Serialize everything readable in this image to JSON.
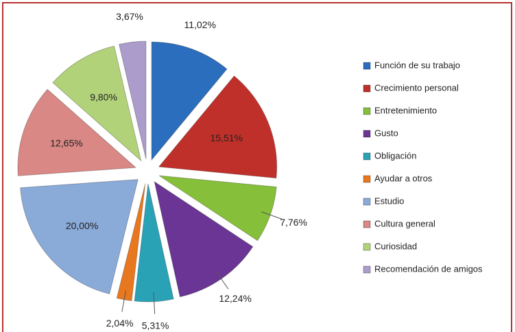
{
  "chart_data": {
    "type": "pie",
    "categories": [
      "Función de su trabajo",
      "Crecimiento personal",
      "Entretenimiento",
      "Gusto",
      "Obligación",
      "Ayudar a otros",
      "Estudio",
      "Cultura general",
      "Curiosidad",
      "Recomendación de amigos"
    ],
    "values": [
      11.02,
      15.51,
      7.76,
      12.24,
      5.31,
      2.04,
      20.0,
      12.65,
      9.8,
      3.67
    ],
    "value_labels": [
      "11,02%",
      "15,51%",
      "7,76%",
      "12,24%",
      "5,31%",
      "2,04%",
      "20,00%",
      "12,65%",
      "9,80%",
      "3,67%"
    ],
    "colors": [
      "#2a6ebd",
      "#c0302a",
      "#86bf3a",
      "#6a3594",
      "#2aa2b6",
      "#e8781f",
      "#8aaad8",
      "#d98886",
      "#b2d27a",
      "#ab9ccb"
    ],
    "legend": "right"
  }
}
